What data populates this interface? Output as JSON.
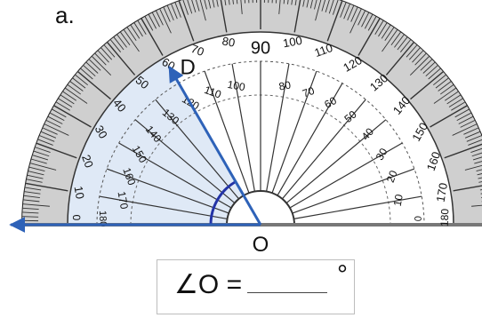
{
  "problem": {
    "part_label": "a.",
    "ray_label": "D",
    "vertex_label": "O",
    "answer_prompt": "∠O =",
    "degree_symbol": "°"
  },
  "protractor": {
    "center_label": "90",
    "outer_scale": [
      "10",
      "20",
      "30",
      "40",
      "50",
      "60",
      "70",
      "80",
      "100",
      "110",
      "120",
      "130",
      "140",
      "150",
      "160",
      "170"
    ],
    "inner_scale": [
      "170",
      "160",
      "150",
      "140",
      "130",
      "120",
      "110",
      "100",
      "80",
      "70",
      "60",
      "50",
      "40",
      "30",
      "20",
      "10"
    ],
    "end_labels": {
      "left_outer": "0",
      "left_inner": "180",
      "right_outer": "180",
      "right_inner": "0"
    }
  },
  "figure": {
    "angle_degrees": 60,
    "colors": {
      "ray": "#2e62b8",
      "shaded_region": "#dfe9f6",
      "arc": "#2333a6",
      "baseline": "#777777",
      "scale_band": "#cfcfcf"
    }
  }
}
